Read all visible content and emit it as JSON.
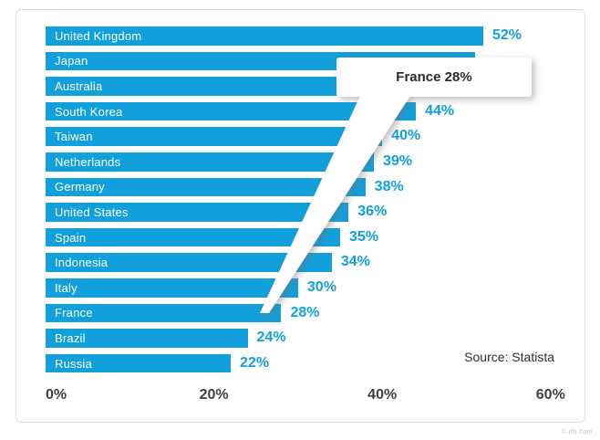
{
  "chart_data": {
    "type": "bar",
    "orientation": "horizontal",
    "title": "",
    "categories": [
      "United Kingdom",
      "Japan",
      "Australia",
      "South Korea",
      "Taiwan",
      "Netherlands",
      "Germany",
      "United States",
      "Spain",
      "Indonesia",
      "Italy",
      "France",
      "Brazil",
      "Russia"
    ],
    "values": [
      52,
      51,
      48,
      44,
      40,
      39,
      38,
      36,
      35,
      34,
      30,
      28,
      24,
      22
    ],
    "value_labels": [
      "52%",
      null,
      null,
      "44%",
      "40%",
      "39%",
      "38%",
      "36%",
      "35%",
      "34%",
      "30%",
      "28%",
      "24%",
      "22%"
    ],
    "xlim": [
      0,
      60
    ],
    "x_ticks": [
      {
        "label": "0%",
        "value": 0
      },
      {
        "label": "20%",
        "value": 20
      },
      {
        "label": "40%",
        "value": 40
      },
      {
        "label": "60%",
        "value": 60
      }
    ],
    "grid": "off",
    "legend": "none",
    "bar_color": "#11a0db",
    "value_label_color": "#11a0db",
    "category_label_color": "#ffffff",
    "axis_label_color": "#404040",
    "source": "Source: Statista"
  },
  "tooltip": {
    "text": "France 28%"
  },
  "watermark": "© ifh.com"
}
